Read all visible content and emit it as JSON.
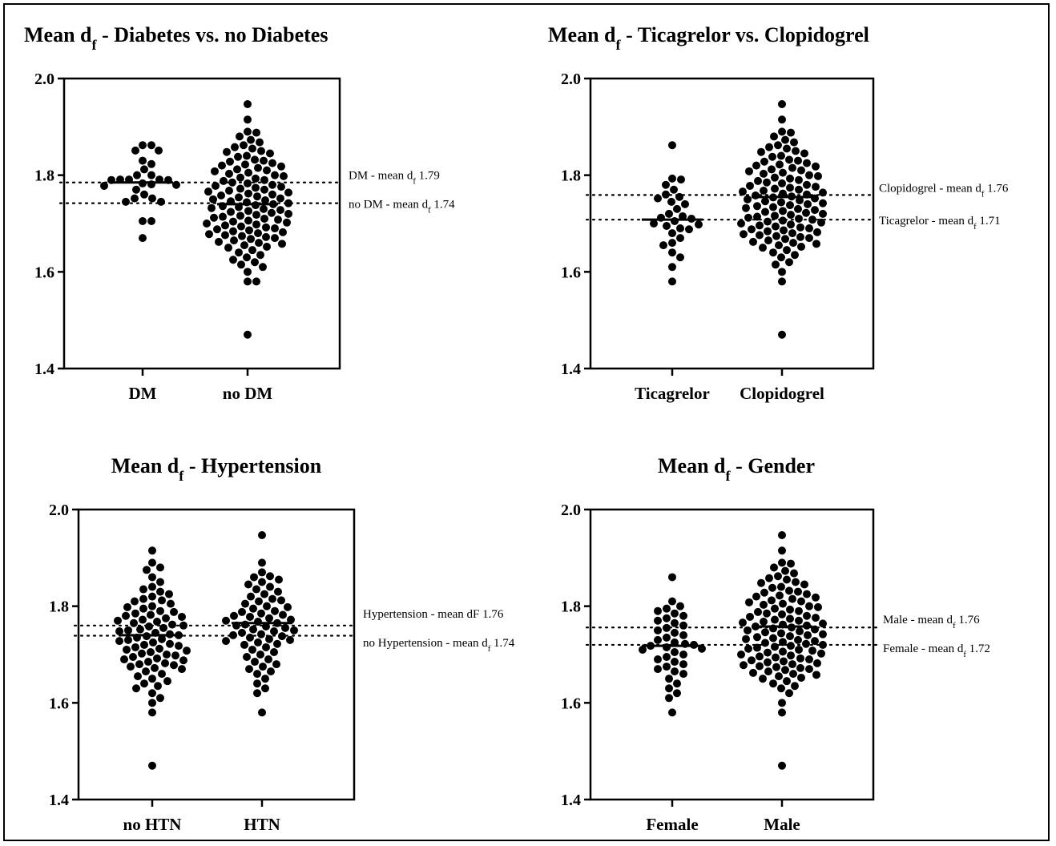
{
  "chart_data": [
    {
      "type": "scatter",
      "title": "Mean d",
      "title_sub": "f",
      "title_rest": " - Diabetes vs. no Diabetes",
      "ylim": [
        1.4,
        2.0
      ],
      "yticks": [
        "1.4",
        "1.6",
        "1.8",
        "2.0"
      ],
      "categories": [
        "DM",
        "no DM"
      ],
      "group_means": [
        1.785,
        1.74
      ],
      "reference_lines": [
        {
          "value": 1.785,
          "label_pre": "DM - mean d",
          "label_sub": "f",
          "label_post": " 1.79"
        },
        {
          "value": 1.742,
          "label_pre": "no DM - mean d",
          "label_sub": "f",
          "label_post": " 1.74"
        }
      ],
      "groups": [
        {
          "values": [
            1.862,
            1.862,
            1.851,
            1.851,
            1.83,
            1.823,
            1.812,
            1.8,
            1.8,
            1.791,
            1.791,
            1.791,
            1.79,
            1.79,
            1.783,
            1.781,
            1.78,
            1.778,
            1.77,
            1.76,
            1.752,
            1.752,
            1.745,
            1.745,
            1.705,
            1.705,
            1.67
          ]
        },
        {
          "values": [
            1.947,
            1.915,
            1.89,
            1.888,
            1.88,
            1.873,
            1.868,
            1.862,
            1.858,
            1.855,
            1.85,
            1.848,
            1.845,
            1.84,
            1.838,
            1.832,
            1.83,
            1.828,
            1.825,
            1.822,
            1.82,
            1.818,
            1.815,
            1.812,
            1.81,
            1.808,
            1.805,
            1.803,
            1.8,
            1.798,
            1.795,
            1.793,
            1.79,
            1.788,
            1.785,
            1.783,
            1.78,
            1.778,
            1.776,
            1.774,
            1.772,
            1.77,
            1.768,
            1.766,
            1.764,
            1.762,
            1.76,
            1.758,
            1.756,
            1.754,
            1.752,
            1.75,
            1.748,
            1.746,
            1.744,
            1.742,
            1.74,
            1.738,
            1.736,
            1.734,
            1.732,
            1.73,
            1.728,
            1.726,
            1.724,
            1.722,
            1.72,
            1.718,
            1.716,
            1.714,
            1.712,
            1.71,
            1.708,
            1.706,
            1.704,
            1.702,
            1.7,
            1.698,
            1.696,
            1.694,
            1.692,
            1.69,
            1.688,
            1.686,
            1.684,
            1.682,
            1.68,
            1.678,
            1.676,
            1.674,
            1.672,
            1.67,
            1.668,
            1.665,
            1.662,
            1.66,
            1.658,
            1.655,
            1.652,
            1.65,
            1.645,
            1.64,
            1.635,
            1.63,
            1.625,
            1.62,
            1.615,
            1.61,
            1.6,
            1.58,
            1.58,
            1.47
          ]
        }
      ]
    },
    {
      "type": "scatter",
      "title": "Mean d",
      "title_sub": "f",
      "title_rest": " - Ticagrelor vs. Clopidogrel",
      "ylim": [
        1.4,
        2.0
      ],
      "yticks": [
        "1.4",
        "1.6",
        "1.8",
        "2.0"
      ],
      "categories": [
        "Ticagrelor",
        "Clopidogrel"
      ],
      "group_means": [
        1.708,
        1.755
      ],
      "reference_lines": [
        {
          "value": 1.759,
          "label_pre": "Clopidogrel - mean d",
          "label_sub": "f",
          "label_post": " 1.76"
        },
        {
          "value": 1.708,
          "label_pre": "Ticagrelor - mean d",
          "label_sub": "f",
          "label_post": " 1.71"
        }
      ],
      "groups": [
        {
          "values": [
            1.862,
            1.793,
            1.791,
            1.78,
            1.77,
            1.76,
            1.755,
            1.752,
            1.745,
            1.74,
            1.73,
            1.72,
            1.715,
            1.712,
            1.71,
            1.705,
            1.7,
            1.698,
            1.695,
            1.69,
            1.688,
            1.68,
            1.67,
            1.66,
            1.655,
            1.64,
            1.63,
            1.61,
            1.58
          ]
        },
        {
          "values": [
            1.947,
            1.915,
            1.89,
            1.888,
            1.88,
            1.873,
            1.868,
            1.862,
            1.858,
            1.855,
            1.85,
            1.848,
            1.845,
            1.84,
            1.838,
            1.832,
            1.83,
            1.828,
            1.825,
            1.822,
            1.82,
            1.818,
            1.815,
            1.812,
            1.81,
            1.808,
            1.805,
            1.803,
            1.8,
            1.798,
            1.795,
            1.793,
            1.79,
            1.788,
            1.785,
            1.783,
            1.78,
            1.778,
            1.776,
            1.774,
            1.772,
            1.77,
            1.768,
            1.766,
            1.764,
            1.762,
            1.76,
            1.758,
            1.756,
            1.754,
            1.752,
            1.75,
            1.748,
            1.746,
            1.744,
            1.742,
            1.74,
            1.738,
            1.736,
            1.734,
            1.732,
            1.73,
            1.728,
            1.726,
            1.724,
            1.722,
            1.72,
            1.718,
            1.716,
            1.714,
            1.712,
            1.71,
            1.708,
            1.706,
            1.704,
            1.702,
            1.7,
            1.698,
            1.696,
            1.694,
            1.692,
            1.69,
            1.688,
            1.686,
            1.684,
            1.682,
            1.68,
            1.678,
            1.676,
            1.674,
            1.672,
            1.67,
            1.668,
            1.665,
            1.662,
            1.66,
            1.658,
            1.655,
            1.652,
            1.65,
            1.645,
            1.64,
            1.635,
            1.63,
            1.62,
            1.615,
            1.6,
            1.58,
            1.47
          ]
        }
      ]
    },
    {
      "type": "scatter",
      "title": "Mean d",
      "title_sub": "f",
      "title_rest": " - Hypertension",
      "ylim": [
        1.4,
        2.0
      ],
      "yticks": [
        "1.4",
        "1.6",
        "1.8",
        "2.0"
      ],
      "categories": [
        "no HTN",
        "HTN"
      ],
      "group_means": [
        1.74,
        1.765
      ],
      "reference_lines": [
        {
          "value": 1.76,
          "label_pre": "Hypertension - mean dF 1.76",
          "label_sub": "",
          "label_post": ""
        },
        {
          "value": 1.739,
          "label_pre": "no Hypertension - mean d",
          "label_sub": "f",
          "label_post": " 1.74"
        }
      ],
      "groups": [
        {
          "values": [
            1.915,
            1.89,
            1.88,
            1.875,
            1.86,
            1.85,
            1.84,
            1.835,
            1.83,
            1.825,
            1.82,
            1.815,
            1.812,
            1.81,
            1.805,
            1.8,
            1.798,
            1.795,
            1.79,
            1.788,
            1.785,
            1.782,
            1.78,
            1.778,
            1.775,
            1.772,
            1.77,
            1.768,
            1.765,
            1.762,
            1.76,
            1.758,
            1.755,
            1.752,
            1.75,
            1.748,
            1.745,
            1.742,
            1.74,
            1.738,
            1.735,
            1.732,
            1.73,
            1.728,
            1.725,
            1.722,
            1.72,
            1.718,
            1.715,
            1.712,
            1.71,
            1.708,
            1.705,
            1.702,
            1.7,
            1.698,
            1.695,
            1.692,
            1.69,
            1.688,
            1.685,
            1.682,
            1.68,
            1.678,
            1.675,
            1.672,
            1.67,
            1.665,
            1.66,
            1.655,
            1.65,
            1.645,
            1.64,
            1.635,
            1.63,
            1.62,
            1.61,
            1.6,
            1.58,
            1.47
          ]
        },
        {
          "values": [
            1.947,
            1.89,
            1.87,
            1.862,
            1.86,
            1.855,
            1.85,
            1.845,
            1.84,
            1.835,
            1.83,
            1.825,
            1.82,
            1.815,
            1.812,
            1.81,
            1.805,
            1.8,
            1.798,
            1.795,
            1.79,
            1.788,
            1.785,
            1.782,
            1.78,
            1.778,
            1.775,
            1.772,
            1.77,
            1.768,
            1.765,
            1.762,
            1.76,
            1.758,
            1.755,
            1.752,
            1.75,
            1.748,
            1.745,
            1.742,
            1.74,
            1.738,
            1.735,
            1.732,
            1.73,
            1.728,
            1.725,
            1.722,
            1.72,
            1.715,
            1.71,
            1.705,
            1.7,
            1.695,
            1.69,
            1.685,
            1.68,
            1.675,
            1.67,
            1.665,
            1.66,
            1.65,
            1.64,
            1.63,
            1.62,
            1.58
          ]
        }
      ]
    },
    {
      "type": "scatter",
      "title": "Mean d",
      "title_sub": "f",
      "title_rest": " - Gender",
      "ylim": [
        1.4,
        2.0
      ],
      "yticks": [
        "1.4",
        "1.6",
        "1.8",
        "2.0"
      ],
      "categories": [
        "Female",
        "Male"
      ],
      "group_means": [
        1.718,
        1.758
      ],
      "reference_lines": [
        {
          "value": 1.756,
          "label_pre": "Male - mean d",
          "label_sub": "f",
          "label_post": " 1.76"
        },
        {
          "value": 1.72,
          "label_pre": "Female - mean d",
          "label_sub": "f",
          "label_post": " 1.72"
        }
      ],
      "groups": [
        {
          "values": [
            1.86,
            1.81,
            1.8,
            1.795,
            1.79,
            1.785,
            1.78,
            1.775,
            1.77,
            1.765,
            1.76,
            1.755,
            1.75,
            1.745,
            1.74,
            1.735,
            1.73,
            1.725,
            1.722,
            1.72,
            1.718,
            1.715,
            1.712,
            1.71,
            1.705,
            1.7,
            1.695,
            1.69,
            1.685,
            1.68,
            1.675,
            1.67,
            1.665,
            1.66,
            1.65,
            1.64,
            1.63,
            1.62,
            1.61,
            1.58
          ]
        },
        {
          "values": [
            1.947,
            1.915,
            1.89,
            1.888,
            1.88,
            1.873,
            1.868,
            1.862,
            1.858,
            1.855,
            1.85,
            1.848,
            1.845,
            1.84,
            1.838,
            1.832,
            1.83,
            1.828,
            1.825,
            1.822,
            1.82,
            1.818,
            1.815,
            1.812,
            1.81,
            1.808,
            1.805,
            1.803,
            1.8,
            1.798,
            1.795,
            1.793,
            1.79,
            1.788,
            1.785,
            1.783,
            1.78,
            1.778,
            1.776,
            1.774,
            1.772,
            1.77,
            1.768,
            1.766,
            1.764,
            1.762,
            1.76,
            1.758,
            1.756,
            1.754,
            1.752,
            1.75,
            1.748,
            1.746,
            1.744,
            1.742,
            1.74,
            1.738,
            1.736,
            1.734,
            1.732,
            1.73,
            1.728,
            1.726,
            1.724,
            1.722,
            1.72,
            1.718,
            1.716,
            1.714,
            1.712,
            1.71,
            1.708,
            1.706,
            1.704,
            1.702,
            1.7,
            1.698,
            1.696,
            1.694,
            1.692,
            1.69,
            1.688,
            1.686,
            1.684,
            1.682,
            1.68,
            1.678,
            1.676,
            1.674,
            1.672,
            1.67,
            1.668,
            1.665,
            1.662,
            1.66,
            1.658,
            1.655,
            1.652,
            1.65,
            1.645,
            1.64,
            1.635,
            1.63,
            1.62,
            1.6,
            1.58,
            1.47
          ]
        }
      ]
    }
  ]
}
